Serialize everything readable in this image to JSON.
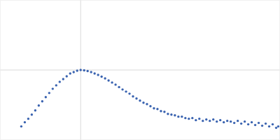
{
  "chart_data": {
    "type": "scatter",
    "color": "#3a63b0",
    "marker": "circle",
    "grid": true,
    "tick_labels": false,
    "xlim": [
      0,
      4
    ],
    "ylim": [
      0,
      2
    ],
    "xticks": [
      1.15
    ],
    "yticks": [
      1
    ],
    "x": [
      0.3,
      0.35,
      0.4,
      0.45,
      0.5,
      0.55,
      0.6,
      0.65,
      0.7,
      0.75,
      0.8,
      0.85,
      0.9,
      0.95,
      1.0,
      1.05,
      1.1,
      1.15,
      1.2,
      1.25,
      1.3,
      1.35,
      1.4,
      1.45,
      1.5,
      1.55,
      1.6,
      1.65,
      1.7,
      1.75,
      1.8,
      1.85,
      1.9,
      1.95,
      2.0,
      2.05,
      2.1,
      2.15,
      2.2,
      2.25,
      2.3,
      2.35,
      2.4,
      2.45,
      2.5,
      2.55,
      2.6,
      2.65,
      2.7,
      2.75,
      2.8,
      2.85,
      2.9,
      2.95,
      3.0,
      3.05,
      3.1,
      3.15,
      3.2,
      3.25,
      3.3,
      3.35,
      3.4,
      3.45,
      3.5,
      3.55,
      3.6,
      3.65,
      3.7,
      3.75,
      3.8,
      3.85,
      3.9,
      3.95,
      3.98
    ],
    "values": [
      0.19,
      0.25,
      0.3,
      0.36,
      0.42,
      0.49,
      0.55,
      0.61,
      0.67,
      0.73,
      0.78,
      0.83,
      0.87,
      0.91,
      0.95,
      0.97,
      0.99,
      1.0,
      0.995,
      0.985,
      0.97,
      0.95,
      0.93,
      0.905,
      0.88,
      0.85,
      0.82,
      0.79,
      0.755,
      0.72,
      0.69,
      0.66,
      0.62,
      0.59,
      0.56,
      0.53,
      0.51,
      0.48,
      0.45,
      0.44,
      0.41,
      0.4,
      0.37,
      0.36,
      0.35,
      0.33,
      0.33,
      0.31,
      0.3,
      0.31,
      0.28,
      0.3,
      0.27,
      0.29,
      0.27,
      0.29,
      0.26,
      0.28,
      0.25,
      0.27,
      0.26,
      0.24,
      0.27,
      0.23,
      0.26,
      0.22,
      0.25,
      0.21,
      0.24,
      0.2,
      0.23,
      0.19,
      0.22,
      0.17,
      0.19
    ]
  }
}
